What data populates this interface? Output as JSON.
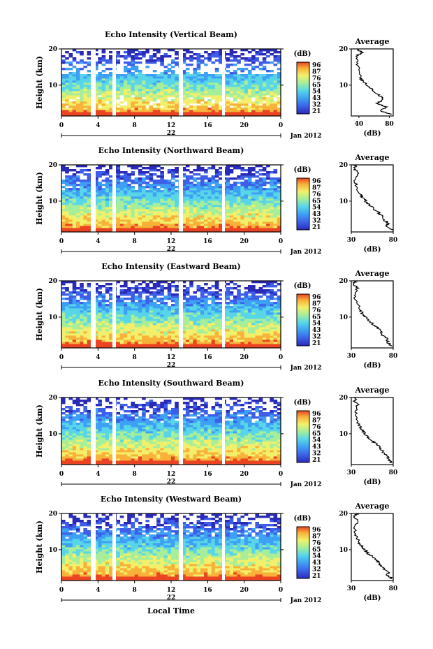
{
  "common": {
    "ylabel": "Height (km)",
    "y_ticks": [
      "20",
      "10"
    ],
    "x_ticks": [
      "0",
      "4",
      "8",
      "12",
      "16",
      "20",
      "0"
    ],
    "date_label": "22",
    "month_label": "Jan 2012",
    "xlabel": "Local Time",
    "colorbar_unit": "(dB)",
    "colorbar_ticks": [
      "96",
      "87",
      "76",
      "65",
      "54",
      "43",
      "32",
      "21"
    ],
    "colorbar_colors": [
      "#2a2ab8",
      "#3c5ee8",
      "#3ea0f4",
      "#58d6e8",
      "#a6ee9a",
      "#f2f06a",
      "#f8b23a",
      "#ea4422"
    ],
    "avg_title": "Average",
    "avg_unit": "(dB)"
  },
  "panels": [
    {
      "title": "Echo Intensity (Vertical Beam)",
      "avg_xticks": [
        "40",
        "80"
      ]
    },
    {
      "title": "Echo Intensity (Northward Beam)",
      "avg_xticks": [
        "30",
        "80"
      ]
    },
    {
      "title": "Echo Intensity (Eastward Beam)",
      "avg_xticks": [
        "30",
        "80"
      ]
    },
    {
      "title": "Echo Intensity (Southward Beam)",
      "avg_xticks": [
        "30",
        "80"
      ]
    },
    {
      "title": "Echo Intensity (Westward Beam)",
      "avg_xticks": [
        "30",
        "80"
      ]
    }
  ],
  "chart_data": [
    {
      "type": "heatmap",
      "title": "Echo Intensity (Vertical Beam)",
      "xlabel": "",
      "ylabel": "Height (km)",
      "xlim": [
        0,
        24
      ],
      "ylim": [
        1.5,
        20
      ],
      "colorbar": {
        "label": "(dB)",
        "range": [
          21,
          96
        ]
      },
      "average_profile": {
        "title": "Average",
        "xlabel": "(dB)",
        "xlim": [
          30,
          85
        ],
        "height_km": [
          2,
          3,
          4,
          5,
          6,
          7,
          8,
          9,
          10,
          11,
          12,
          14,
          16,
          18,
          19,
          20
        ],
        "value_db": [
          82,
          68,
          76,
          63,
          72,
          68,
          62,
          57,
          51,
          46,
          42,
          40,
          38,
          37,
          44,
          38
        ]
      }
    },
    {
      "type": "heatmap",
      "title": "Echo Intensity (Northward Beam)",
      "xlabel": "",
      "ylabel": "Height (km)",
      "xlim": [
        0,
        24
      ],
      "ylim": [
        1.5,
        20
      ],
      "colorbar": {
        "label": "(dB)",
        "range": [
          21,
          96
        ]
      },
      "average_profile": {
        "title": "Average",
        "xlabel": "(dB)",
        "xlim": [
          30,
          80
        ],
        "height_km": [
          2,
          3,
          4,
          5,
          6,
          7,
          8,
          9,
          10,
          11,
          12,
          14,
          16,
          18,
          19,
          20
        ],
        "value_db": [
          78,
          72,
          74,
          68,
          66,
          62,
          56,
          52,
          47,
          44,
          40,
          37,
          34,
          38,
          33,
          36
        ]
      }
    },
    {
      "type": "heatmap",
      "title": "Echo Intensity (Eastward Beam)",
      "xlabel": "",
      "ylabel": "Height (km)",
      "xlim": [
        0,
        24
      ],
      "ylim": [
        1.5,
        20
      ],
      "colorbar": {
        "label": "(dB)",
        "range": [
          21,
          96
        ]
      },
      "average_profile": {
        "title": "Average",
        "xlabel": "(dB)",
        "xlim": [
          30,
          80
        ],
        "height_km": [
          2,
          3,
          4,
          5,
          6,
          7,
          8,
          9,
          10,
          11,
          12,
          14,
          16,
          18,
          19,
          20
        ],
        "value_db": [
          79,
          73,
          74,
          67,
          65,
          61,
          56,
          51,
          47,
          43,
          40,
          37,
          34,
          37,
          33,
          35
        ]
      }
    },
    {
      "type": "heatmap",
      "title": "Echo Intensity (Southward Beam)",
      "xlabel": "",
      "ylabel": "Height (km)",
      "xlim": [
        0,
        24
      ],
      "ylim": [
        1.5,
        20
      ],
      "colorbar": {
        "label": "(dB)",
        "range": [
          21,
          96
        ]
      },
      "average_profile": {
        "title": "Average",
        "xlabel": "(dB)",
        "xlim": [
          30,
          80
        ],
        "height_km": [
          2,
          3,
          4,
          5,
          6,
          7,
          8,
          9,
          10,
          11,
          12,
          14,
          16,
          18,
          19,
          20
        ],
        "value_db": [
          78,
          74,
          72,
          68,
          64,
          61,
          55,
          50,
          46,
          43,
          40,
          36,
          35,
          38,
          34,
          36
        ]
      }
    },
    {
      "type": "heatmap",
      "title": "Echo Intensity (Westward Beam)",
      "xlabel": "Local Time",
      "ylabel": "Height (km)",
      "xlim": [
        0,
        24
      ],
      "ylim": [
        1.5,
        20
      ],
      "colorbar": {
        "label": "(dB)",
        "range": [
          21,
          96
        ]
      },
      "average_profile": {
        "title": "Average",
        "xlabel": "(dB)",
        "xlim": [
          30,
          80
        ],
        "height_km": [
          2,
          3,
          4,
          5,
          6,
          7,
          8,
          9,
          10,
          11,
          12,
          14,
          16,
          18,
          19,
          20
        ],
        "value_db": [
          79,
          73,
          75,
          67,
          64,
          60,
          55,
          50,
          46,
          42,
          39,
          36,
          33,
          38,
          33,
          37
        ]
      }
    }
  ]
}
